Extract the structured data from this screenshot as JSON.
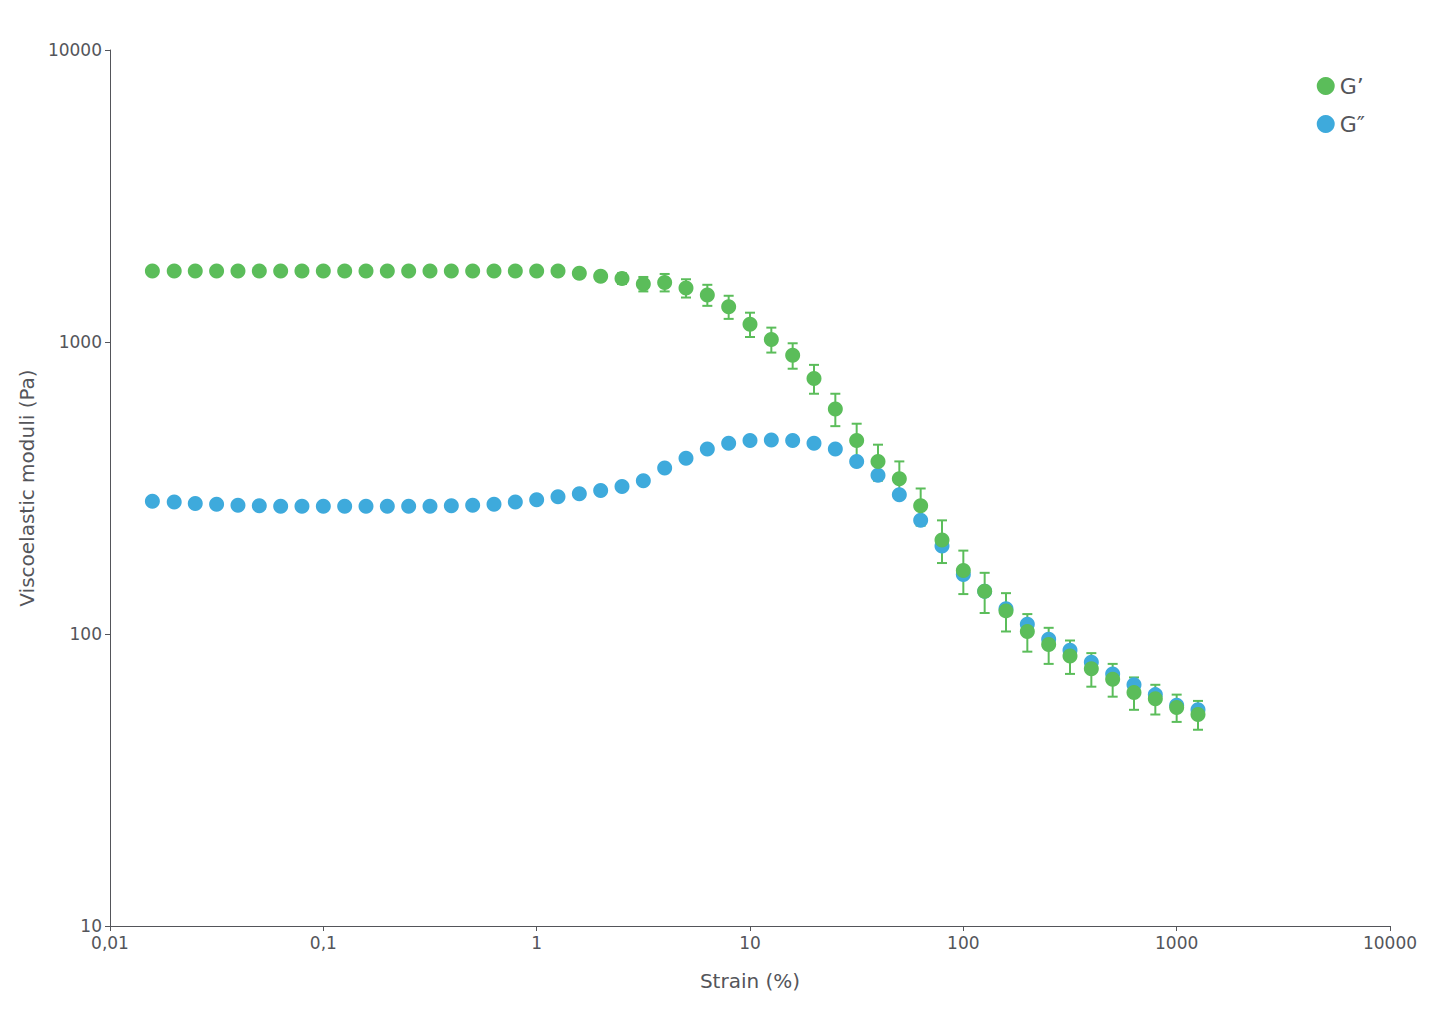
{
  "chart_data": {
    "type": "scatter",
    "xlabel": "Strain (%)",
    "ylabel": "Viscoelastic moduli (Pa)",
    "log": true,
    "grid": false,
    "legend": "upper right",
    "xlim": [
      0.01,
      10000
    ],
    "ylim": [
      10,
      10000
    ],
    "xticks": [
      {
        "value": 0.01,
        "label": "0,01"
      },
      {
        "value": 0.1,
        "label": "0,1"
      },
      1,
      10,
      100,
      1000,
      10000
    ],
    "yticks": [
      10,
      100,
      1000,
      10000
    ],
    "series": [
      {
        "name": "G’",
        "color": "#5BBD5A",
        "marker": "circle",
        "x": [
          0.0158,
          0.02,
          0.0251,
          0.0316,
          0.0398,
          0.0501,
          0.0631,
          0.0794,
          0.1,
          0.1259,
          0.1585,
          0.1995,
          0.2512,
          0.3162,
          0.3981,
          0.5012,
          0.631,
          0.7943,
          1.0,
          1.2589,
          1.5849,
          1.9953,
          2.5119,
          3.1623,
          3.9811,
          5.0119,
          6.3096,
          7.9433,
          10.0,
          12.589,
          15.849,
          19.953,
          25.119,
          31.623,
          39.811,
          50.119,
          63.096,
          79.433,
          100.0,
          125.89,
          158.49,
          199.53,
          251.19,
          316.23,
          398.11,
          501.19,
          630.96,
          794.33,
          1000.0,
          1258.9
        ],
        "values": [
          1750,
          1750,
          1750,
          1750,
          1750,
          1750,
          1750,
          1750,
          1750,
          1750,
          1750,
          1750,
          1750,
          1750,
          1750,
          1750,
          1750,
          1750,
          1750,
          1750,
          1720,
          1680,
          1650,
          1580,
          1600,
          1530,
          1450,
          1320,
          1150,
          1020,
          900,
          750,
          590,
          460,
          390,
          340,
          275,
          210,
          165,
          140,
          120,
          102,
          92,
          84,
          76,
          70,
          63,
          60,
          56,
          53
        ],
        "yerr_lo": [
          0,
          0,
          0,
          0,
          0,
          0,
          0,
          0,
          0,
          0,
          0,
          0,
          0,
          0,
          0,
          0,
          0,
          0,
          0,
          0,
          60,
          60,
          70,
          90,
          110,
          110,
          120,
          120,
          110,
          100,
          90,
          85,
          75,
          65,
          55,
          50,
          40,
          35,
          28,
          22,
          18,
          15,
          13,
          11,
          10,
          9,
          8,
          7,
          6,
          6
        ],
        "yerr_hi": [
          0,
          0,
          0,
          0,
          0,
          0,
          0,
          0,
          0,
          0,
          0,
          0,
          0,
          0,
          0,
          0,
          0,
          0,
          0,
          0,
          60,
          60,
          70,
          90,
          110,
          110,
          120,
          120,
          110,
          100,
          90,
          85,
          75,
          65,
          55,
          50,
          40,
          35,
          28,
          22,
          18,
          15,
          13,
          11,
          10,
          9,
          8,
          7,
          6,
          6
        ]
      },
      {
        "name": "G″",
        "color": "#3EAADC",
        "marker": "circle",
        "x": [
          0.0158,
          0.02,
          0.0251,
          0.0316,
          0.0398,
          0.0501,
          0.0631,
          0.0794,
          0.1,
          0.1259,
          0.1585,
          0.1995,
          0.2512,
          0.3162,
          0.3981,
          0.5012,
          0.631,
          0.7943,
          1.0,
          1.2589,
          1.5849,
          1.9953,
          2.5119,
          3.1623,
          3.9811,
          5.0119,
          6.3096,
          7.9433,
          10.0,
          12.589,
          15.849,
          19.953,
          25.119,
          31.623,
          39.811,
          50.119,
          63.096,
          79.433,
          100.0,
          125.89,
          158.49,
          199.53,
          251.19,
          316.23,
          398.11,
          501.19,
          630.96,
          794.33,
          1000.0,
          1258.9
        ],
        "values": [
          285,
          283,
          280,
          278,
          276,
          275,
          274,
          274,
          274,
          274,
          274,
          274,
          274,
          274,
          275,
          276,
          278,
          283,
          288,
          295,
          302,
          310,
          320,
          335,
          370,
          400,
          430,
          450,
          460,
          462,
          460,
          450,
          430,
          390,
          350,
          300,
          245,
          200,
          160,
          140,
          122,
          108,
          96,
          88,
          80,
          73,
          67,
          62,
          57,
          55
        ]
      }
    ]
  }
}
